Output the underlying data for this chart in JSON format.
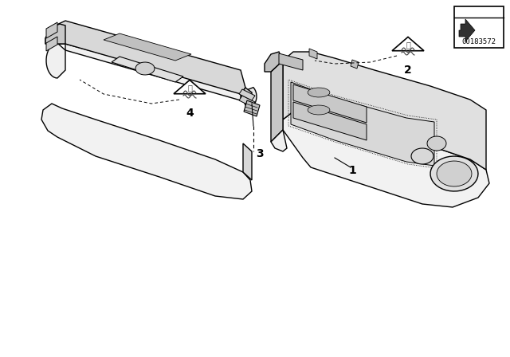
{
  "bg_color": "#ffffff",
  "line_color": "#000000",
  "part_number": "00183572",
  "fill_top": "#f0f0f0",
  "fill_side": "#e0e0e0",
  "fill_dark": "#c8c8c8",
  "fill_mid": "#d8d8d8",
  "fill_recess": "#b8b8b8"
}
